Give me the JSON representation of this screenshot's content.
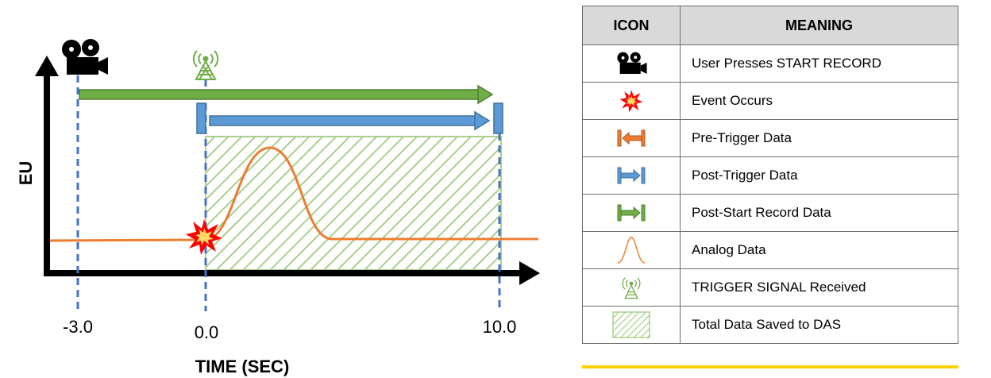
{
  "diagram": {
    "y_axis_label": "EU",
    "x_axis_label": "TIME (SEC)",
    "tick_labels": [
      "-3.0",
      "0.0",
      "10.0"
    ]
  },
  "legend": {
    "header_icon": "ICON",
    "header_meaning": "MEANING",
    "rows": [
      {
        "icon": "video-camera-icon",
        "meaning": "User Presses START RECORD"
      },
      {
        "icon": "explosion-icon",
        "meaning": "Event Occurs"
      },
      {
        "icon": "pre-trigger-arrow-icon",
        "meaning": "Pre-Trigger Data"
      },
      {
        "icon": "post-trigger-arrow-icon",
        "meaning": "Post-Trigger Data"
      },
      {
        "icon": "post-start-record-arrow-icon",
        "meaning": "Post-Start Record Data"
      },
      {
        "icon": "analog-curve-icon",
        "meaning": "Analog Data"
      },
      {
        "icon": "antenna-icon",
        "meaning": "TRIGGER SIGNAL Received"
      },
      {
        "icon": "hatched-box-icon",
        "meaning": "Total Data Saved to DAS"
      }
    ]
  },
  "colors": {
    "green_arrow": "#70ad47",
    "blue_arrow": "#5b9bd5",
    "orange_arrow": "#ed7d31",
    "analog": "#ed7d31",
    "dashed_line": "#4472c4",
    "hatch": "#a9d08e",
    "header_bg": "#d9d9d9",
    "yellow_bar": "#ffd200"
  }
}
